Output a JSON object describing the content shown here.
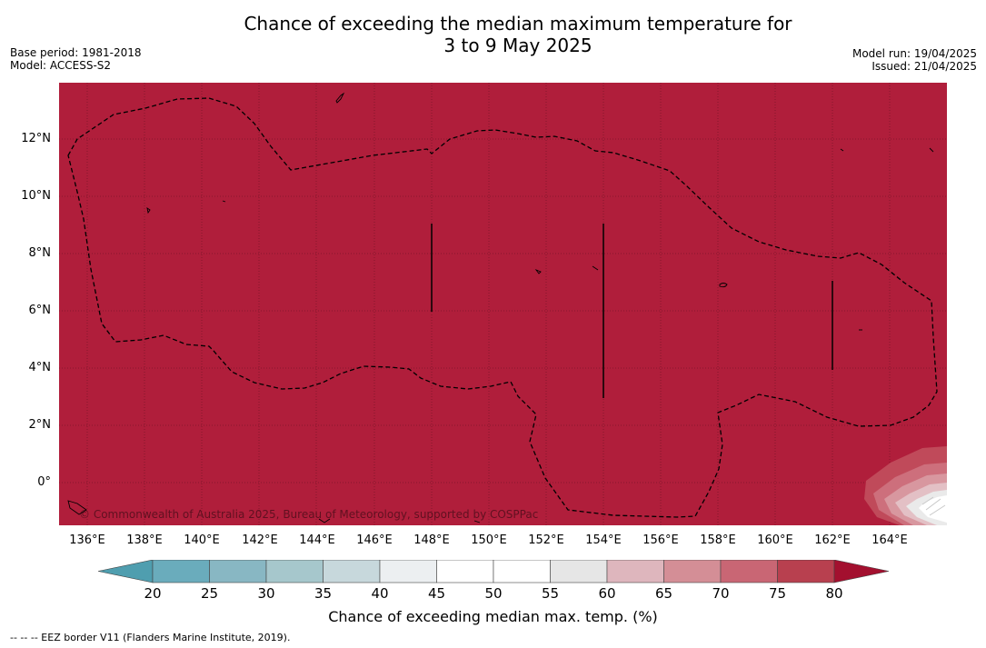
{
  "header": {
    "title_line1": "Chance of exceeding the median maximum temperature for",
    "title_line2": "3 to 9 May 2025",
    "base_period": "Base period: 1981-2018",
    "model": "Model: ACCESS-S2",
    "model_run": "Model run: 19/04/2025",
    "issued": "Issued: 21/04/2025"
  },
  "map": {
    "fill_color": "#b01e3b",
    "credit": "© Commonwealth of Australia 2025, Bureau of Meteorology, supported by COSPPac",
    "lat_ticks": [
      "12°N",
      "10°N",
      "8°N",
      "6°N",
      "4°N",
      "2°N",
      "0°"
    ],
    "lon_ticks": [
      "136°E",
      "138°E",
      "140°E",
      "142°E",
      "144°E",
      "146°E",
      "148°E",
      "150°E",
      "152°E",
      "154°E",
      "156°E",
      "158°E",
      "160°E",
      "162°E",
      "164°E"
    ]
  },
  "colorbar": {
    "labels": [
      "20",
      "25",
      "30",
      "35",
      "40",
      "45",
      "50",
      "55",
      "60",
      "65",
      "70",
      "75",
      "80"
    ],
    "colors": [
      "#6aacbc",
      "#88b7c3",
      "#a6c7cc",
      "#c7d8dc",
      "#eceff1",
      "#ffffff",
      "#ffffff",
      "#e6e6e6",
      "#deb6bd",
      "#d48e96",
      "#c96674",
      "#b8404f"
    ],
    "under_color": "#4f9eaf",
    "over_color": "#a3102f",
    "title": "Chance of exceeding median max. temp. (%)"
  },
  "legend_note": "--  --  -- EEZ border V11 (Flanders Marine Institute, 2019)."
}
